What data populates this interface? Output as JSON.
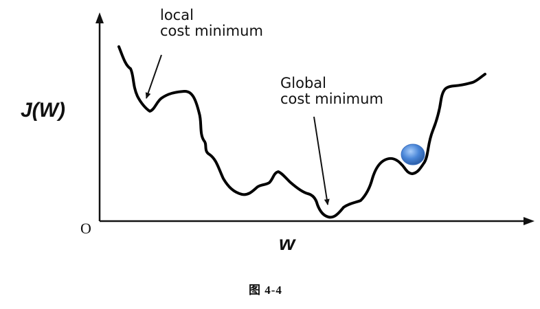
{
  "diagram": {
    "y_axis_label": "J(W)",
    "x_axis_label": "w",
    "origin_label": "O",
    "local_annotation": {
      "line1": "local",
      "line2": "cost minimum"
    },
    "global_annotation": {
      "line1": "Global",
      "line2": "cost minimum"
    },
    "ball_color": "#4a86d8",
    "curve_color": "#000000"
  },
  "caption": "图 4-4"
}
